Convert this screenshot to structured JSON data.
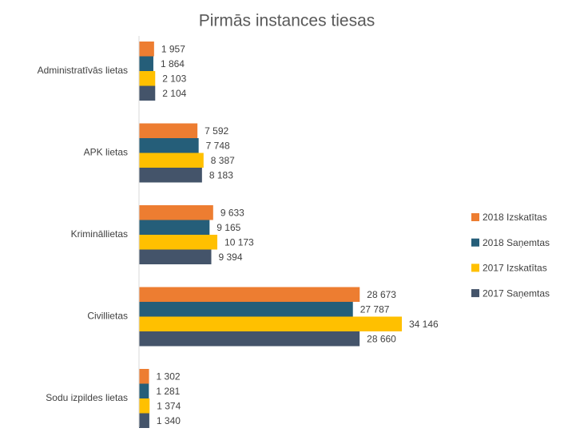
{
  "chart_data": {
    "type": "hbar",
    "title": "Pirmās instances tiesas",
    "categories": [
      "Administratīvās lietas",
      "APK lietas",
      "Krimināllietas",
      "Civillietas",
      "Sodu izpildes lietas"
    ],
    "series": [
      {
        "name": "2018 Izskatītas",
        "color": "#ED7D31",
        "values": [
          1957,
          7592,
          9633,
          28673,
          1302
        ],
        "value_labels": [
          "1 957",
          "7 592",
          "9 633",
          "28 673",
          "1 302"
        ]
      },
      {
        "name": "2018 Saņemtas",
        "color": "#255E79",
        "values": [
          1864,
          7748,
          9165,
          27787,
          1281
        ],
        "value_labels": [
          "1 864",
          "7 748",
          "9 165",
          "27 787",
          "1 281"
        ]
      },
      {
        "name": "2017 Izskatītas",
        "color": "#FFC000",
        "values": [
          2103,
          8387,
          10173,
          34146,
          1374
        ],
        "value_labels": [
          "2 103",
          "8 387",
          "10 173",
          "34 146",
          "1 374"
        ]
      },
      {
        "name": "2017 Saņemtas",
        "color": "#44546A",
        "values": [
          2104,
          8183,
          9394,
          28660,
          1340
        ],
        "value_labels": [
          "2 104",
          "8 183",
          "9 394",
          "28 660",
          "1 340"
        ]
      }
    ]
  }
}
